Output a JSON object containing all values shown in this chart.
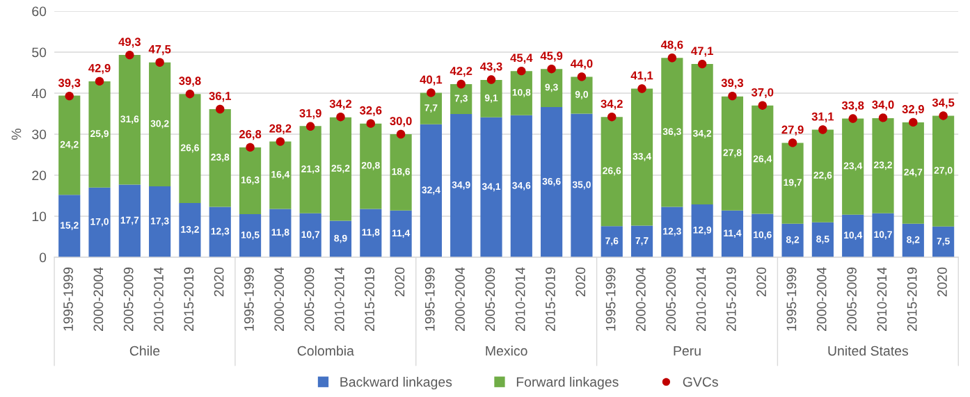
{
  "chart_data": {
    "type": "bar",
    "stacked": true,
    "ylabel": "%",
    "categories": [
      "1995-1999",
      "2000-2004",
      "2005-2009",
      "2010-2014",
      "2015-2019",
      "2020",
      "1995-1999",
      "2000-2004",
      "2005-2009",
      "2010-2014",
      "2015-2019",
      "2020",
      "1995-1999",
      "2000-2004",
      "2005-2009",
      "2010-2014",
      "2015-2019",
      "2020",
      "1995-1999",
      "2000-2004",
      "2005-2009",
      "2010-2014",
      "2015-2019",
      "2020",
      "1995-1999",
      "2000-2004",
      "2005-2009",
      "2010-2014",
      "2015-2019",
      "2020"
    ],
    "annotations": [
      "Chile",
      "Colombia",
      "Mexico",
      "Peru",
      "United States"
    ],
    "series": [
      {
        "name": "Backward linkages",
        "color": "#4472c4",
        "values": [
          15.2,
          17.0,
          17.7,
          17.3,
          13.2,
          12.3,
          10.5,
          11.8,
          10.7,
          8.9,
          11.8,
          11.4,
          32.4,
          34.9,
          34.1,
          34.6,
          36.6,
          35.0,
          7.6,
          7.7,
          12.3,
          12.9,
          11.4,
          10.6,
          8.2,
          8.5,
          10.4,
          10.7,
          8.2,
          7.5
        ],
        "value_labels": [
          "15,2",
          "17,0",
          "17,7",
          "17,3",
          "13,2",
          "12,3",
          "10,5",
          "11,8",
          "10,7",
          "8,9",
          "11,8",
          "11,4",
          "32,4",
          "34,9",
          "34,1",
          "34,6",
          "36,6",
          "35,0",
          "7,6",
          "7,7",
          "12,3",
          "12,9",
          "11,4",
          "10,6",
          "8,2",
          "8,5",
          "10,4",
          "10,7",
          "8,2",
          "7,5"
        ]
      },
      {
        "name": "Forward linkages",
        "color": "#70ad47",
        "values": [
          24.2,
          25.9,
          31.6,
          30.2,
          26.6,
          23.8,
          16.3,
          16.4,
          21.3,
          25.2,
          20.8,
          18.6,
          7.7,
          7.3,
          9.1,
          10.8,
          9.3,
          9.0,
          26.6,
          33.4,
          36.3,
          34.2,
          27.8,
          26.4,
          19.7,
          22.6,
          23.4,
          23.2,
          24.7,
          27.0
        ],
        "value_labels": [
          "24,2",
          "25,9",
          "31,6",
          "30,2",
          "26,6",
          "23,8",
          "16,3",
          "16,4",
          "21,3",
          "25,2",
          "20,8",
          "18,6",
          "7,7",
          "7,3",
          "9,1",
          "10,8",
          "9,3",
          "9,0",
          "26,6",
          "33,4",
          "36,3",
          "34,2",
          "27,8",
          "26,4",
          "19,7",
          "22,6",
          "23,4",
          "23,2",
          "24,7",
          "27,0"
        ]
      },
      {
        "name": "GVCs",
        "type": "scatter",
        "marker": "circle",
        "color": "#c00000",
        "values": [
          39.3,
          42.9,
          49.3,
          47.5,
          39.8,
          36.1,
          26.8,
          28.2,
          31.9,
          34.2,
          32.6,
          30.0,
          40.1,
          42.2,
          43.3,
          45.4,
          45.9,
          44.0,
          34.2,
          41.1,
          48.6,
          47.1,
          39.3,
          37.0,
          27.9,
          31.1,
          33.8,
          34.0,
          32.9,
          34.5
        ],
        "value_labels": [
          "39,3",
          "42,9",
          "49,3",
          "47,5",
          "39,8",
          "36,1",
          "26,8",
          "28,2",
          "31,9",
          "34,2",
          "32,6",
          "30,0",
          "40,1",
          "42,2",
          "43,3",
          "45,4",
          "45,9",
          "44,0",
          "34,2",
          "41,1",
          "48,6",
          "47,1",
          "39,3",
          "37,0",
          "27,9",
          "31,1",
          "33,8",
          "34,0",
          "32,9",
          "34,5"
        ]
      }
    ],
    "ylim": [
      0,
      60
    ],
    "yticks": [
      0,
      10,
      20,
      30,
      40,
      50,
      60
    ],
    "grid": "y",
    "legend": "bottom"
  }
}
